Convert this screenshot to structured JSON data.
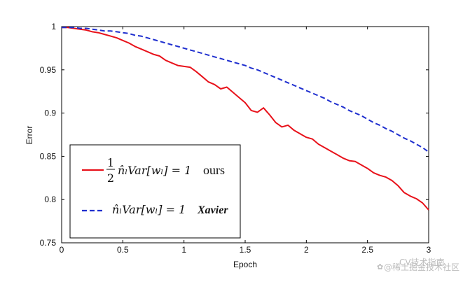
{
  "chart_data": {
    "type": "line",
    "xlabel": "Epoch",
    "ylabel": "Error",
    "xlim": [
      0,
      3
    ],
    "ylim": [
      0.75,
      1
    ],
    "x_ticks": [
      "0",
      "0.5",
      "1",
      "1.5",
      "2",
      "2.5",
      "3"
    ],
    "y_ticks": [
      "0.75",
      "0.8",
      "0.85",
      "0.9",
      "0.95",
      "1"
    ],
    "x_tick_values": [
      0,
      0.5,
      1,
      1.5,
      2,
      2.5,
      3
    ],
    "y_tick_values": [
      0.75,
      0.8,
      0.85,
      0.9,
      0.95,
      1
    ],
    "series": [
      {
        "name": "ours",
        "formula": "1/2 n̂l Var[wl] = 1",
        "color": "#e8121b",
        "style": "solid",
        "x": [
          0,
          0.05,
          0.1,
          0.15,
          0.2,
          0.25,
          0.3,
          0.35,
          0.4,
          0.45,
          0.5,
          0.55,
          0.6,
          0.65,
          0.7,
          0.75,
          0.8,
          0.85,
          0.9,
          0.95,
          1,
          1.05,
          1.1,
          1.15,
          1.2,
          1.25,
          1.3,
          1.35,
          1.4,
          1.45,
          1.5,
          1.55,
          1.6,
          1.65,
          1.7,
          1.75,
          1.8,
          1.85,
          1.9,
          1.95,
          2,
          2.05,
          2.1,
          2.15,
          2.2,
          2.25,
          2.3,
          2.35,
          2.4,
          2.45,
          2.5,
          2.55,
          2.6,
          2.65,
          2.7,
          2.75,
          2.8,
          2.85,
          2.9,
          2.95,
          3
        ],
        "values": [
          0.999,
          0.999,
          0.998,
          0.997,
          0.996,
          0.994,
          0.993,
          0.991,
          0.989,
          0.987,
          0.984,
          0.981,
          0.977,
          0.974,
          0.971,
          0.968,
          0.966,
          0.961,
          0.958,
          0.955,
          0.954,
          0.953,
          0.948,
          0.942,
          0.936,
          0.933,
          0.928,
          0.93,
          0.924,
          0.918,
          0.912,
          0.903,
          0.901,
          0.906,
          0.898,
          0.889,
          0.884,
          0.886,
          0.88,
          0.876,
          0.872,
          0.87,
          0.864,
          0.86,
          0.856,
          0.852,
          0.848,
          0.845,
          0.844,
          0.84,
          0.836,
          0.831,
          0.828,
          0.826,
          0.822,
          0.816,
          0.808,
          0.804,
          0.801,
          0.796,
          0.788
        ]
      },
      {
        "name": "Xavier",
        "formula": "n̂l Var[wl] = 1",
        "color": "#1f2fcf",
        "style": "dashed",
        "x": [
          0,
          0.05,
          0.1,
          0.15,
          0.2,
          0.25,
          0.3,
          0.35,
          0.4,
          0.45,
          0.5,
          0.55,
          0.6,
          0.65,
          0.7,
          0.75,
          0.8,
          0.85,
          0.9,
          0.95,
          1,
          1.05,
          1.1,
          1.15,
          1.2,
          1.25,
          1.3,
          1.35,
          1.4,
          1.45,
          1.5,
          1.55,
          1.6,
          1.65,
          1.7,
          1.75,
          1.8,
          1.85,
          1.9,
          1.95,
          2,
          2.05,
          2.1,
          2.15,
          2.2,
          2.25,
          2.3,
          2.35,
          2.4,
          2.45,
          2.5,
          2.55,
          2.6,
          2.65,
          2.7,
          2.75,
          2.8,
          2.85,
          2.9,
          2.95,
          3
        ],
        "values": [
          0.999,
          0.999,
          0.999,
          0.998,
          0.998,
          0.997,
          0.996,
          0.995,
          0.995,
          0.994,
          0.993,
          0.992,
          0.99,
          0.989,
          0.987,
          0.985,
          0.983,
          0.981,
          0.979,
          0.977,
          0.975,
          0.973,
          0.971,
          0.969,
          0.967,
          0.965,
          0.963,
          0.961,
          0.959,
          0.957,
          0.955,
          0.952,
          0.95,
          0.947,
          0.944,
          0.941,
          0.938,
          0.935,
          0.932,
          0.929,
          0.926,
          0.923,
          0.92,
          0.917,
          0.913,
          0.91,
          0.907,
          0.903,
          0.9,
          0.897,
          0.893,
          0.889,
          0.886,
          0.882,
          0.879,
          0.875,
          0.871,
          0.868,
          0.864,
          0.86,
          0.855
        ]
      }
    ],
    "legend": {
      "position": "bottom-left",
      "ours_formula_parts": {
        "fraction_num": "1",
        "fraction_den": "2",
        "rest": "n̂ₗVar[wₗ] = 1"
      },
      "ours_tag": "ours",
      "xavier_formula": "n̂ₗVar[wₗ] = 1",
      "xavier_tag": "Xavier"
    }
  },
  "watermark": {
    "text": "@稀土掘金技术社区",
    "overlay_text": "CV技术指南"
  }
}
